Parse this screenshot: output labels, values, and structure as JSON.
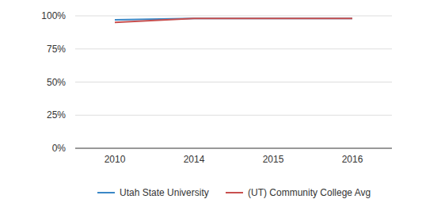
{
  "chart_data": {
    "type": "line",
    "categories": [
      "2010",
      "2014",
      "2015",
      "2016"
    ],
    "series": [
      {
        "name": "Utah State University",
        "color": "#3a87c6",
        "values": [
          97,
          98,
          98,
          98
        ]
      },
      {
        "name": "(UT) Community College Avg",
        "color": "#c8504f",
        "values": [
          95,
          98,
          98,
          98
        ]
      }
    ],
    "ylim": [
      0,
      100
    ],
    "yticks": [
      {
        "value": 0,
        "label": "0%"
      },
      {
        "value": 25,
        "label": "25%"
      },
      {
        "value": 50,
        "label": "50%"
      },
      {
        "value": 75,
        "label": "75%"
      },
      {
        "value": 100,
        "label": "100%"
      }
    ],
    "grid": true,
    "legend": "bottom"
  }
}
